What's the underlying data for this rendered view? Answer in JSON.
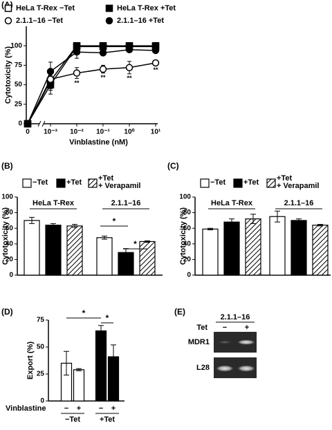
{
  "chart_data": [
    {
      "type": "line",
      "panel_label": "(A)",
      "xlabel": "Vinblastine (nM)",
      "ylabel": "Cytotoxicity (%)",
      "x": [
        0,
        0.001,
        0.01,
        0.1,
        1,
        10
      ],
      "xscale": "log",
      "xlim": [
        0.001,
        10
      ],
      "xticks": [
        0,
        {
          "value": 0.001,
          "label": "10⁻³"
        },
        {
          "value": 0.01,
          "label": "10⁻²"
        },
        {
          "value": 0.1,
          "label": "10⁻¹"
        },
        {
          "value": 1,
          "label": "10⁰"
        },
        {
          "value": 10,
          "label": "10¹"
        }
      ],
      "ylim": [
        0,
        125
      ],
      "yticks": [
        0,
        25,
        50,
        75,
        100
      ],
      "series": [
        {
          "name": "HeLa T-Rex −Tet",
          "color": "#000",
          "marker": "square",
          "filled": false,
          "values": [
            0,
            55,
            100,
            100,
            100,
            100
          ],
          "errors": [
            0,
            12,
            0,
            0,
            0,
            0
          ]
        },
        {
          "name": "HeLa T-Rex +Tet",
          "color": "#000",
          "marker": "square",
          "filled": true,
          "values": [
            0,
            50,
            99,
            99,
            99,
            99
          ],
          "errors": [
            0,
            12,
            2,
            2,
            2,
            2
          ]
        },
        {
          "name": "2.1.1–16 −Tet",
          "color": "#000",
          "marker": "circle",
          "filled": false,
          "values": [
            0,
            57,
            65,
            70,
            72,
            78
          ],
          "errors": [
            0,
            12,
            7,
            5,
            8,
            3
          ]
        },
        {
          "name": "2.1.1–16 +Tet",
          "color": "#000",
          "marker": "circle",
          "filled": true,
          "values": [
            0,
            67,
            92,
            91,
            95,
            94
          ],
          "errors": [
            0,
            12,
            8,
            2,
            3,
            2
          ]
        }
      ],
      "annotations": [
        {
          "text": "**",
          "x": 0.01
        },
        {
          "text": "**",
          "x": 0.1
        },
        {
          "text": "**",
          "x": 1
        },
        {
          "text": "**",
          "x": 10
        }
      ]
    },
    {
      "type": "bar",
      "panel_label": "(B)",
      "ylabel": "Cytotoxicity (%)",
      "categories": [
        "HeLa T-Rex",
        "2.1.1–16"
      ],
      "ylim": [
        0,
        100
      ],
      "yticks": [
        0,
        20,
        40,
        60,
        80,
        100
      ],
      "series": [
        {
          "name": "−Tet",
          "color": "#fff",
          "values": [
            70,
            48
          ],
          "errors": [
            4,
            2
          ]
        },
        {
          "name": "+Tet",
          "color": "#000",
          "values": [
            64,
            29
          ],
          "errors": [
            2,
            5
          ]
        },
        {
          "name": "+Tet\n+ Verapamil",
          "color": "#000",
          "pattern": "hatch",
          "values": [
            63,
            43
          ],
          "errors": [
            2,
            1
          ]
        }
      ],
      "annotations": [
        "*",
        "*"
      ]
    },
    {
      "type": "bar",
      "panel_label": "(C)",
      "ylabel": "Cytotoxicity (%)",
      "categories": [
        "HeLa T-Rex",
        "2.1.1–16"
      ],
      "ylim": [
        0,
        100
      ],
      "yticks": [
        0,
        20,
        40,
        60,
        80,
        100
      ],
      "series": [
        {
          "name": "−Tet",
          "color": "#fff",
          "values": [
            59,
            75
          ],
          "errors": [
            1,
            7
          ]
        },
        {
          "name": "+Tet",
          "color": "#000",
          "values": [
            68,
            70
          ],
          "errors": [
            4,
            2
          ]
        },
        {
          "name": "+Tet\n+ Verapamil",
          "color": "#000",
          "pattern": "hatch",
          "values": [
            72,
            64
          ],
          "errors": [
            6,
            1
          ]
        }
      ]
    },
    {
      "type": "bar",
      "panel_label": "(D)",
      "ylabel": "Export (%)",
      "row_label": "Vinblastine",
      "categories": [
        "−",
        "+",
        "−",
        "+"
      ],
      "groups": [
        "−Tet",
        "+Tet"
      ],
      "colors": [
        "#fff",
        "#fff",
        "#000",
        "#000"
      ],
      "values": [
        35,
        29,
        65,
        41
      ],
      "errors": [
        11,
        1,
        5,
        11
      ],
      "ylim": [
        0,
        75
      ],
      "yticks": [
        0,
        25,
        50,
        75
      ],
      "annotations": [
        "*",
        "*"
      ]
    }
  ],
  "panel_e": {
    "panel_label": "(E)",
    "header": "2.1.1–16",
    "column_label": "Tet",
    "lanes": [
      "−",
      "+"
    ],
    "rows": [
      "MDR1",
      "L28"
    ]
  }
}
